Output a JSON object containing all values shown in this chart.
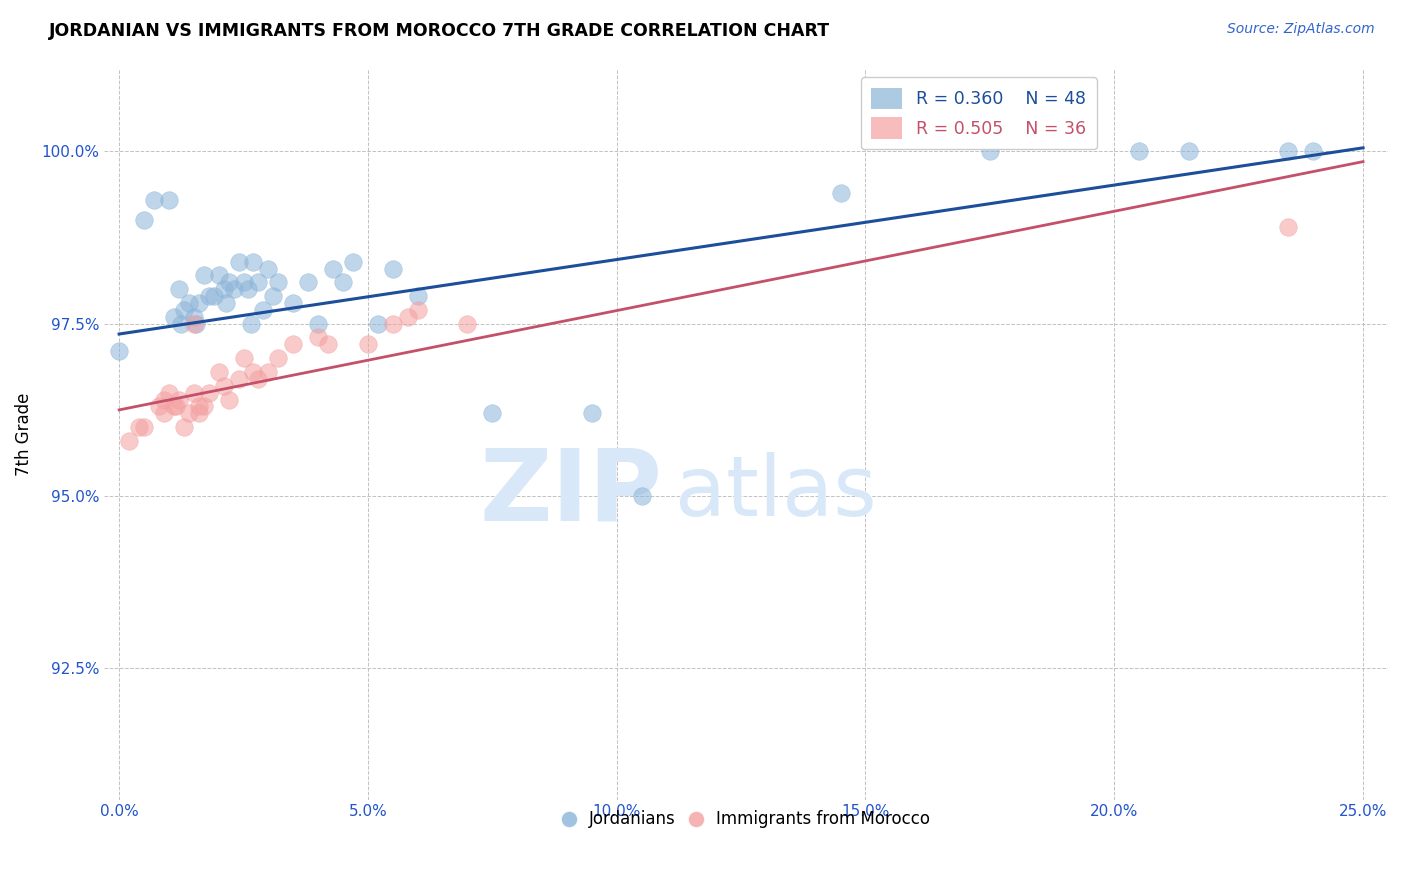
{
  "title": "JORDANIAN VS IMMIGRANTS FROM MOROCCO 7TH GRADE CORRELATION CHART",
  "source_text": "Source: ZipAtlas.com",
  "ylabel": "7th Grade",
  "x_ticks": [
    0.0,
    5.0,
    10.0,
    15.0,
    20.0,
    25.0
  ],
  "x_tick_labels": [
    "0.0%",
    "5.0%",
    "10.0%",
    "15.0%",
    "20.0%",
    "25.0%"
  ],
  "y_ticks": [
    0.925,
    0.95,
    0.975,
    1.0
  ],
  "y_tick_labels": [
    "92.5%",
    "95.0%",
    "97.5%",
    "100.0%"
  ],
  "xlim": [
    -0.3,
    25.5
  ],
  "ylim": [
    0.906,
    1.012
  ],
  "legend_r1": "R = 0.360",
  "legend_n1": "N = 48",
  "legend_r2": "R = 0.505",
  "legend_n2": "N = 36",
  "blue_color": "#8BB4D8",
  "pink_color": "#F4A0A0",
  "line_blue": "#1C4E9A",
  "line_pink": "#C4506A",
  "watermark_color": "#D8E8F8",
  "watermark_text": "ZIPAtlas",
  "blue_line_x0": 0.0,
  "blue_line_y0": 0.9735,
  "blue_line_x1": 25.0,
  "blue_line_y1": 1.0005,
  "pink_line_x0": 0.0,
  "pink_line_y0": 0.9625,
  "pink_line_x1": 25.0,
  "pink_line_y1": 0.9985,
  "jordanians_x": [
    0.0,
    0.5,
    0.7,
    1.0,
    1.1,
    1.2,
    1.3,
    1.4,
    1.5,
    1.6,
    1.7,
    1.8,
    1.9,
    2.0,
    2.1,
    2.2,
    2.3,
    2.4,
    2.5,
    2.6,
    2.7,
    2.8,
    2.9,
    3.0,
    3.2,
    3.5,
    3.8,
    4.0,
    4.3,
    4.5,
    5.5,
    6.0,
    7.5,
    9.5,
    10.5,
    14.5,
    17.5,
    20.5,
    21.5,
    23.5,
    24.0,
    1.25,
    1.55,
    2.15,
    2.65,
    3.1,
    4.7,
    5.2
  ],
  "jordanians_y": [
    0.971,
    0.99,
    0.993,
    0.993,
    0.976,
    0.98,
    0.977,
    0.978,
    0.976,
    0.978,
    0.982,
    0.979,
    0.979,
    0.982,
    0.98,
    0.981,
    0.98,
    0.984,
    0.981,
    0.98,
    0.984,
    0.981,
    0.977,
    0.983,
    0.981,
    0.978,
    0.981,
    0.975,
    0.983,
    0.981,
    0.983,
    0.979,
    0.962,
    0.962,
    0.95,
    0.994,
    1.0,
    1.0,
    1.0,
    1.0,
    1.0,
    0.975,
    0.975,
    0.978,
    0.975,
    0.979,
    0.984,
    0.975
  ],
  "morocco_x": [
    1.5,
    0.4,
    0.8,
    0.9,
    1.0,
    1.1,
    1.2,
    1.3,
    1.4,
    1.5,
    1.6,
    1.7,
    1.8,
    2.0,
    2.2,
    2.4,
    2.5,
    2.7,
    3.0,
    3.5,
    4.0,
    5.0,
    6.0,
    7.0,
    0.2,
    0.5,
    0.9,
    1.15,
    1.6,
    2.1,
    2.8,
    3.2,
    4.2,
    5.5,
    23.5,
    5.8
  ],
  "morocco_y": [
    0.975,
    0.96,
    0.963,
    0.964,
    0.965,
    0.963,
    0.964,
    0.96,
    0.962,
    0.965,
    0.962,
    0.963,
    0.965,
    0.968,
    0.964,
    0.967,
    0.97,
    0.968,
    0.968,
    0.972,
    0.973,
    0.972,
    0.977,
    0.975,
    0.958,
    0.96,
    0.962,
    0.963,
    0.963,
    0.966,
    0.967,
    0.97,
    0.972,
    0.975,
    0.989,
    0.976
  ]
}
